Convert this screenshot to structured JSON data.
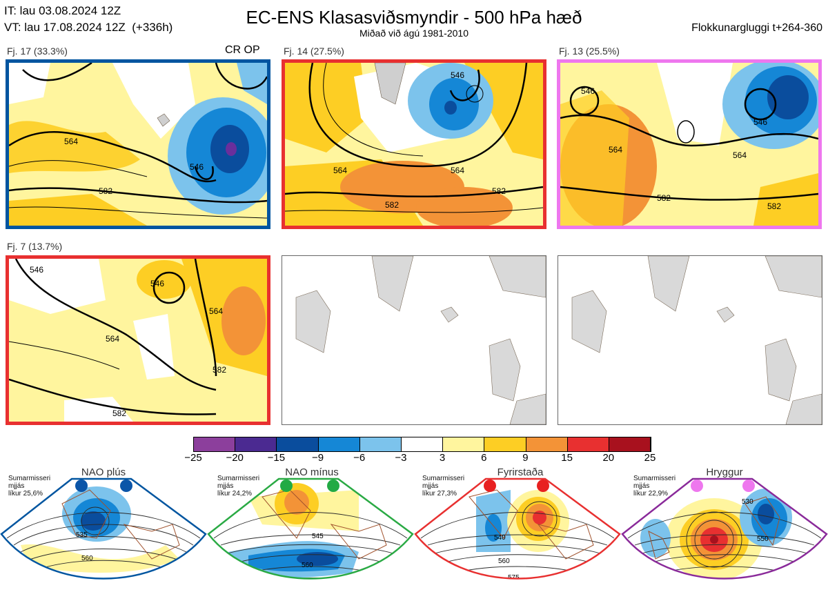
{
  "header": {
    "it_line": "IT: lau 03.08.2024 12Z",
    "vt_line": "VT: lau 17.08.2024 12Z  (+336h)",
    "title": "EC-ENS Klasasviðsmyndir - 500 hPa hæð",
    "subtitle": "Miðað við ágú 1981-2010",
    "window": "Flokkunargluggi t+264-360"
  },
  "clusters": [
    {
      "label": "Fj. 17 (33.3%)",
      "border": "#0055a0",
      "extra": "CR OP",
      "contours": [
        "546",
        "564",
        "582",
        "582"
      ]
    },
    {
      "label": "Fj. 14 (27.5%)",
      "border": "#e83030",
      "contours": [
        "546",
        "564",
        "564",
        "582",
        "546"
      ]
    },
    {
      "label": "Fj. 13 (25.5%)",
      "border": "#ee77ee",
      "contours": [
        "546",
        "546",
        "564",
        "564",
        "582",
        "582"
      ]
    },
    {
      "label": "Fj. 7 (13.7%)",
      "border": "#e83030",
      "contours": [
        "546",
        "546",
        "564",
        "564",
        "582",
        "582"
      ]
    }
  ],
  "colorbar": {
    "labels": [
      "−25",
      "−20",
      "−15",
      "−9",
      "−6",
      "−3",
      "3",
      "6",
      "9",
      "15",
      "20",
      "25"
    ],
    "colors": [
      "#8c3f9c",
      "#4b2a91",
      "#0a4d9d",
      "#1587d6",
      "#7cc3ec",
      "#ffffff",
      "#fff59e",
      "#fdce24",
      "#f39337",
      "#e83030",
      "#a8111e"
    ]
  },
  "regimes": [
    {
      "name": "NAO plús",
      "line1": "Sumarmisseri",
      "line2": "mjjás",
      "line3": "líkur 25,6%",
      "color": "#0055a0",
      "dot": "#0b55a8",
      "contours": [
        "535",
        "560"
      ]
    },
    {
      "name": "NAO mínus",
      "line1": "Sumarmisseri",
      "line2": "mjjás",
      "line3": "líkur 24,2%",
      "color": "#2aaa44",
      "dot": "#22aa44",
      "contours": [
        "545",
        "560",
        "575"
      ]
    },
    {
      "name": "Fyrirstaða",
      "line1": "Sumarmisseri",
      "line2": "mjjás",
      "line3": "líkur 27,3%",
      "color": "#e83030",
      "dot": "#e82020",
      "contours": [
        "540",
        "560",
        "575"
      ]
    },
    {
      "name": "Hryggur",
      "line1": "Sumarmisseri",
      "line2": "mjjás",
      "line3": "líkur 22,9%",
      "color": "#8a2a9a",
      "dot": "#ee77ee",
      "contours": [
        "530",
        "550",
        "575"
      ]
    }
  ]
}
